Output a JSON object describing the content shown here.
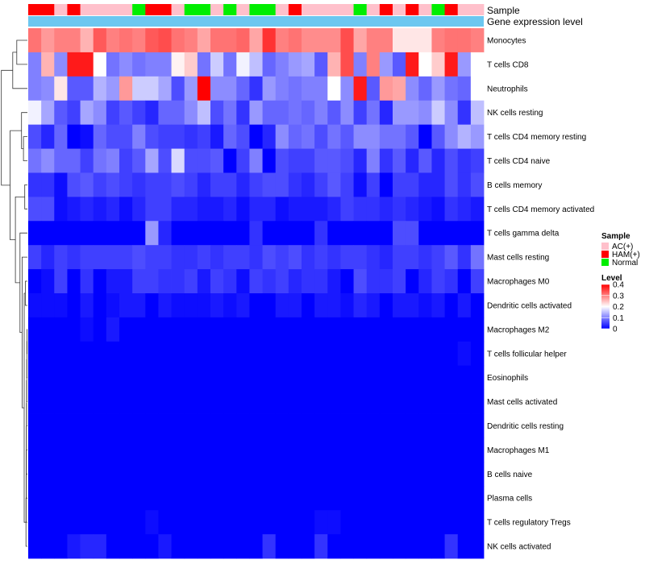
{
  "chart_data": {
    "type": "heatmap",
    "title": "",
    "annotation_labels": {
      "sample": "Sample",
      "expression": "Gene expression level"
    },
    "expression_color": "#6cc7f0",
    "rows": [
      "Monocytes",
      "T cells CD8",
      "Neutrophils",
      "NK cells resting",
      "T cells CD4 memory resting",
      "T cells CD4 naive",
      "B cells memory",
      "T cells CD4 memory activated",
      "T cells gamma delta",
      "Mast cells resting",
      "Macrophages M0",
      "Dendritic cells activated",
      "Macrophages M2",
      "T cells follicular helper",
      "Eosinophils",
      "Mast cells activated",
      "Dendritic cells resting",
      "Macrophages M1",
      "B cells naive",
      "Plasma cells",
      "T cells regulatory  Tregs",
      "NK cells activated"
    ],
    "samples": [
      "HAM(+)",
      "HAM(+)",
      "AC(+)",
      "HAM(+)",
      "AC(+)",
      "AC(+)",
      "AC(+)",
      "AC(+)",
      "Normal",
      "HAM(+)",
      "HAM(+)",
      "AC(+)",
      "Normal",
      "Normal",
      "AC(+)",
      "Normal",
      "AC(+)",
      "Normal",
      "Normal",
      "AC(+)",
      "HAM(+)",
      "AC(+)",
      "AC(+)",
      "AC(+)",
      "AC(+)",
      "Normal",
      "AC(+)",
      "HAM(+)",
      "AC(+)",
      "HAM(+)",
      "AC(+)",
      "Normal",
      "HAM(+)",
      "AC(+)",
      "AC(+)"
    ],
    "values": [
      [
        0.31,
        0.28,
        0.3,
        0.3,
        0.26,
        0.33,
        0.3,
        0.31,
        0.3,
        0.33,
        0.34,
        0.31,
        0.3,
        0.27,
        0.31,
        0.31,
        0.32,
        0.27,
        0.36,
        0.3,
        0.31,
        0.29,
        0.29,
        0.29,
        0.34,
        0.27,
        0.3,
        0.3,
        0.22,
        0.22,
        0.22,
        0.3,
        0.31,
        0.31,
        0.3
      ],
      [
        0.1,
        0.26,
        0.11,
        0.38,
        0.38,
        0.2,
        0.09,
        0.11,
        0.09,
        0.1,
        0.1,
        0.21,
        0.24,
        0.09,
        0.16,
        0.09,
        0.19,
        0.15,
        0.08,
        0.1,
        0.12,
        0.13,
        0.07,
        0.26,
        0.34,
        0.1,
        0.3,
        0.12,
        0.07,
        0.38,
        0.2,
        0.24,
        0.38,
        0.12,
        0.2
      ],
      [
        0.1,
        0.11,
        0.22,
        0.07,
        0.07,
        0.14,
        0.12,
        0.28,
        0.16,
        0.16,
        0.13,
        0.06,
        0.12,
        0.4,
        0.11,
        0.11,
        0.08,
        0.04,
        0.12,
        0.1,
        0.09,
        0.1,
        0.1,
        0.2,
        0.11,
        0.38,
        0.07,
        0.28,
        0.27,
        0.11,
        0.08,
        0.12,
        0.09,
        0.08,
        0.2
      ],
      [
        0.19,
        0.13,
        0.07,
        0.05,
        0.13,
        0.11,
        0.05,
        0.07,
        0.05,
        0.03,
        0.08,
        0.08,
        0.11,
        0.15,
        0.06,
        0.09,
        0.04,
        0.12,
        0.08,
        0.08,
        0.09,
        0.08,
        0.1,
        0.07,
        0.11,
        0.05,
        0.09,
        0.03,
        0.12,
        0.12,
        0.11,
        0.16,
        0.11,
        0.04,
        0.15
      ],
      [
        0.06,
        0.03,
        0.08,
        0.0,
        0.01,
        0.08,
        0.06,
        0.06,
        0.1,
        0.06,
        0.05,
        0.05,
        0.04,
        0.05,
        0.02,
        0.08,
        0.06,
        0.0,
        0.03,
        0.11,
        0.08,
        0.09,
        0.06,
        0.09,
        0.07,
        0.11,
        0.11,
        0.09,
        0.09,
        0.07,
        0.0,
        0.07,
        0.11,
        0.14,
        0.12
      ],
      [
        0.09,
        0.11,
        0.08,
        0.08,
        0.05,
        0.09,
        0.1,
        0.05,
        0.07,
        0.13,
        0.06,
        0.17,
        0.06,
        0.06,
        0.07,
        0.0,
        0.05,
        0.1,
        0.0,
        0.06,
        0.05,
        0.05,
        0.07,
        0.07,
        0.06,
        0.03,
        0.1,
        0.04,
        0.07,
        0.03,
        0.07,
        0.03,
        0.06,
        0.04,
        0.05
      ],
      [
        0.04,
        0.04,
        0.01,
        0.06,
        0.07,
        0.05,
        0.06,
        0.05,
        0.04,
        0.05,
        0.05,
        0.06,
        0.05,
        0.03,
        0.05,
        0.05,
        0.03,
        0.05,
        0.06,
        0.06,
        0.04,
        0.03,
        0.05,
        0.07,
        0.05,
        0.01,
        0.05,
        0.0,
        0.05,
        0.05,
        0.03,
        0.03,
        0.06,
        0.04,
        0.06
      ],
      [
        0.06,
        0.06,
        0.01,
        0.02,
        0.03,
        0.02,
        0.03,
        0.01,
        0.03,
        0.05,
        0.05,
        0.03,
        0.03,
        0.02,
        0.02,
        0.03,
        0.01,
        0.03,
        0.03,
        0.01,
        0.02,
        0.02,
        0.02,
        0.03,
        0.05,
        0.04,
        0.04,
        0.03,
        0.04,
        0.03,
        0.02,
        0.01,
        0.04,
        0.03,
        0.02
      ],
      [
        0.0,
        0.0,
        0.0,
        0.0,
        0.0,
        0.0,
        0.0,
        0.0,
        0.0,
        0.12,
        0.03,
        0.0,
        0.0,
        0.0,
        0.0,
        0.0,
        0.0,
        0.04,
        0.0,
        0.0,
        0.0,
        0.0,
        0.04,
        0.0,
        0.0,
        0.0,
        0.0,
        0.0,
        0.06,
        0.06,
        0.0,
        0.0,
        0.0,
        0.0,
        0.0
      ],
      [
        0.05,
        0.03,
        0.05,
        0.04,
        0.05,
        0.05,
        0.05,
        0.05,
        0.06,
        0.05,
        0.05,
        0.04,
        0.04,
        0.05,
        0.04,
        0.05,
        0.05,
        0.04,
        0.06,
        0.05,
        0.06,
        0.04,
        0.05,
        0.04,
        0.05,
        0.05,
        0.04,
        0.03,
        0.05,
        0.05,
        0.04,
        0.05,
        0.07,
        0.04,
        0.09
      ],
      [
        0.0,
        0.01,
        0.05,
        0.0,
        0.04,
        0.0,
        0.02,
        0.02,
        0.05,
        0.05,
        0.04,
        0.04,
        0.05,
        0.02,
        0.05,
        0.04,
        0.01,
        0.05,
        0.04,
        0.05,
        0.03,
        0.04,
        0.04,
        0.02,
        0.0,
        0.06,
        0.04,
        0.04,
        0.05,
        0.0,
        0.03,
        0.05,
        0.04,
        0.0,
        0.05
      ],
      [
        0.01,
        0.01,
        0.01,
        0.0,
        0.02,
        0.0,
        0.01,
        0.02,
        0.02,
        0.0,
        0.02,
        0.01,
        0.01,
        0.01,
        0.02,
        0.01,
        0.02,
        0.0,
        0.0,
        0.02,
        0.02,
        0.0,
        0.02,
        0.02,
        0.01,
        0.03,
        0.02,
        0.0,
        0.02,
        0.02,
        0.01,
        0.02,
        0.0,
        0.02,
        0.0
      ],
      [
        0.0,
        0.0,
        0.0,
        0.0,
        0.01,
        0.0,
        0.02,
        0.0,
        0.0,
        0.0,
        0.0,
        0.0,
        0.0,
        0.0,
        0.0,
        0.0,
        0.0,
        0.0,
        0.0,
        0.0,
        0.0,
        0.0,
        0.0,
        0.0,
        0.0,
        0.0,
        0.0,
        0.0,
        0.0,
        0.0,
        0.0,
        0.0,
        0.0,
        0.0,
        0.0
      ],
      [
        0.0,
        0.0,
        0.0,
        0.0,
        0.0,
        0.0,
        0.0,
        0.0,
        0.0,
        0.0,
        0.0,
        0.0,
        0.0,
        0.0,
        0.0,
        0.0,
        0.0,
        0.0,
        0.0,
        0.0,
        0.0,
        0.0,
        0.0,
        0.0,
        0.0,
        0.0,
        0.0,
        0.0,
        0.0,
        0.0,
        0.0,
        0.0,
        0.0,
        0.01,
        0.0
      ],
      [
        0.0,
        0.0,
        0.0,
        0.0,
        0.0,
        0.0,
        0.0,
        0.0,
        0.0,
        0.0,
        0.0,
        0.0,
        0.0,
        0.0,
        0.0,
        0.0,
        0.0,
        0.0,
        0.0,
        0.0,
        0.0,
        0.0,
        0.0,
        0.0,
        0.0,
        0.0,
        0.0,
        0.0,
        0.0,
        0.0,
        0.0,
        0.0,
        0.0,
        0.0,
        0.0
      ],
      [
        0.0,
        0.0,
        0.0,
        0.0,
        0.0,
        0.0,
        0.0,
        0.0,
        0.0,
        0.0,
        0.0,
        0.0,
        0.0,
        0.0,
        0.0,
        0.0,
        0.0,
        0.0,
        0.0,
        0.0,
        0.0,
        0.0,
        0.0,
        0.0,
        0.0,
        0.0,
        0.0,
        0.0,
        0.0,
        0.0,
        0.0,
        0.0,
        0.0,
        0.0,
        0.0
      ],
      [
        0.0,
        0.0,
        0.0,
        0.0,
        0.0,
        0.0,
        0.0,
        0.0,
        0.0,
        0.0,
        0.0,
        0.0,
        0.0,
        0.0,
        0.0,
        0.0,
        0.0,
        0.0,
        0.0,
        0.0,
        0.0,
        0.0,
        0.0,
        0.0,
        0.0,
        0.0,
        0.0,
        0.0,
        0.0,
        0.0,
        0.0,
        0.0,
        0.0,
        0.0,
        0.0
      ],
      [
        0.0,
        0.0,
        0.0,
        0.0,
        0.0,
        0.0,
        0.0,
        0.0,
        0.0,
        0.0,
        0.0,
        0.0,
        0.0,
        0.0,
        0.0,
        0.0,
        0.0,
        0.0,
        0.0,
        0.0,
        0.0,
        0.0,
        0.0,
        0.0,
        0.0,
        0.0,
        0.0,
        0.0,
        0.0,
        0.0,
        0.0,
        0.0,
        0.0,
        0.0,
        0.0
      ],
      [
        0.0,
        0.0,
        0.0,
        0.0,
        0.0,
        0.0,
        0.0,
        0.0,
        0.0,
        0.0,
        0.0,
        0.0,
        0.0,
        0.0,
        0.0,
        0.0,
        0.0,
        0.0,
        0.0,
        0.0,
        0.0,
        0.0,
        0.0,
        0.0,
        0.0,
        0.0,
        0.0,
        0.0,
        0.0,
        0.0,
        0.0,
        0.0,
        0.0,
        0.0,
        0.0
      ],
      [
        0.0,
        0.0,
        0.0,
        0.0,
        0.0,
        0.0,
        0.0,
        0.0,
        0.0,
        0.0,
        0.0,
        0.0,
        0.0,
        0.0,
        0.0,
        0.0,
        0.0,
        0.0,
        0.0,
        0.0,
        0.0,
        0.0,
        0.0,
        0.0,
        0.0,
        0.0,
        0.0,
        0.0,
        0.0,
        0.0,
        0.0,
        0.0,
        0.0,
        0.0,
        0.0
      ],
      [
        0.0,
        0.0,
        0.0,
        0.0,
        0.0,
        0.0,
        0.0,
        0.0,
        0.0,
        0.01,
        0.0,
        0.0,
        0.0,
        0.0,
        0.0,
        0.0,
        0.0,
        0.0,
        0.0,
        0.0,
        0.0,
        0.0,
        0.01,
        0.01,
        0.0,
        0.0,
        0.0,
        0.0,
        0.0,
        0.0,
        0.0,
        0.0,
        0.0,
        0.0,
        0.0
      ],
      [
        0.0,
        0.0,
        0.0,
        0.02,
        0.03,
        0.03,
        0.0,
        0.0,
        0.0,
        0.0,
        0.02,
        0.0,
        0.0,
        0.0,
        0.0,
        0.0,
        0.0,
        0.0,
        0.04,
        0.0,
        0.0,
        0.0,
        0.04,
        0.0,
        0.0,
        0.0,
        0.0,
        0.0,
        0.0,
        0.0,
        0.0,
        0.0,
        0.04,
        0.0,
        0.0
      ]
    ],
    "scale": {
      "min": 0,
      "max": 0.4,
      "low_color": "#0000ff",
      "mid_color": "#ffffff",
      "high_color": "#ff0000"
    },
    "legend": {
      "sample_title": "Sample",
      "sample_entries": [
        {
          "label": "AC(+)",
          "color": "#ffc0cb"
        },
        {
          "label": "HAM(+)",
          "color": "#ff0000"
        },
        {
          "label": "Normal",
          "color": "#00ee00"
        }
      ],
      "level_title": "Level",
      "level_ticks": [
        "0.4",
        "0.3",
        "0.2",
        "0.1",
        "0"
      ],
      "level_tick_values": [
        0.4,
        0.3,
        0.2,
        0.1,
        0
      ],
      "placement": "right"
    },
    "dendrogram": "rows"
  }
}
